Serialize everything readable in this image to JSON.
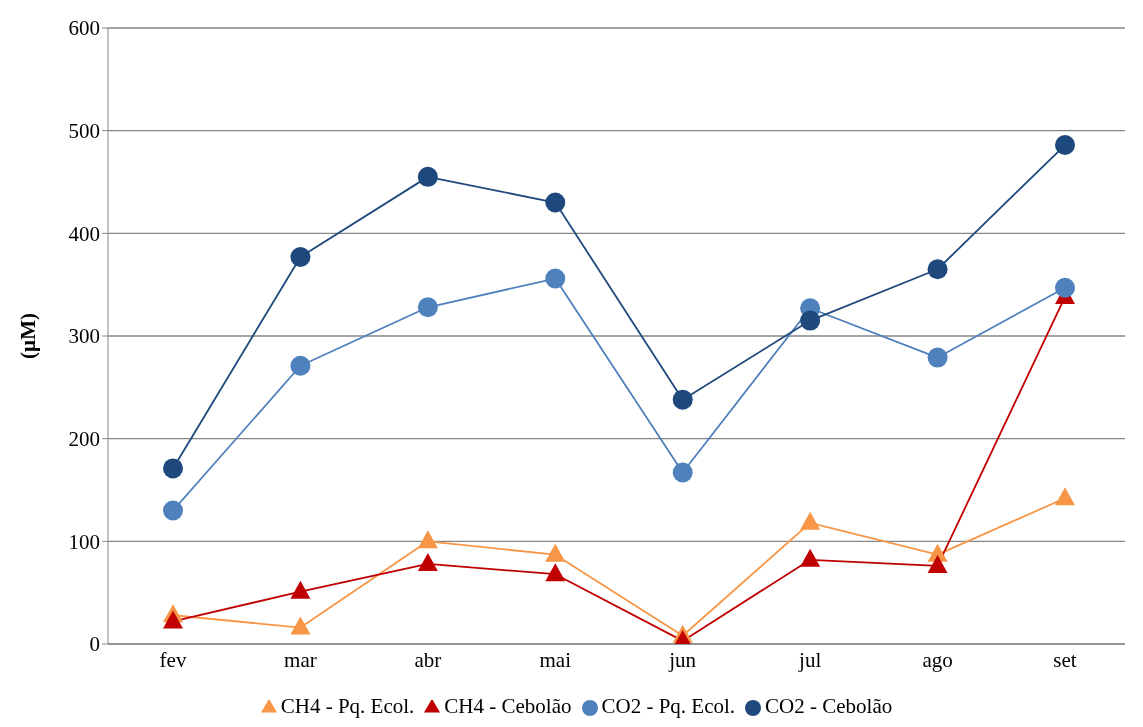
{
  "chart_data": {
    "type": "line",
    "ylabel": "(µM)",
    "categories": [
      "fev",
      "mar",
      "abr",
      "mai",
      "jun",
      "jul",
      "ago",
      "set"
    ],
    "series": [
      {
        "name": "CH4 - Pq. Ecol.",
        "color": "#f79646",
        "marker": "triangle",
        "values": [
          28,
          16,
          100,
          87,
          8,
          118,
          87,
          142
        ]
      },
      {
        "name": "CH4 - Cebolão",
        "color": "#c00000",
        "marker": "triangle",
        "values": [
          22,
          51,
          78,
          68,
          3,
          82,
          76,
          338
        ]
      },
      {
        "name": "CO2 - Pq. Ecol.",
        "color": "#4f81bd",
        "marker": "circle",
        "values": [
          130,
          271,
          328,
          356,
          167,
          327,
          279,
          347
        ]
      },
      {
        "name": "CO2 - Cebolão",
        "color": "#1f497d",
        "marker": "circle",
        "values": [
          171,
          377,
          455,
          430,
          238,
          315,
          365,
          486
        ]
      }
    ],
    "ylim": [
      0,
      600
    ],
    "yticks": [
      0,
      100,
      200,
      300,
      400,
      500,
      600
    ],
    "grid": "y",
    "legend": "bottom",
    "line_style": "solid"
  }
}
